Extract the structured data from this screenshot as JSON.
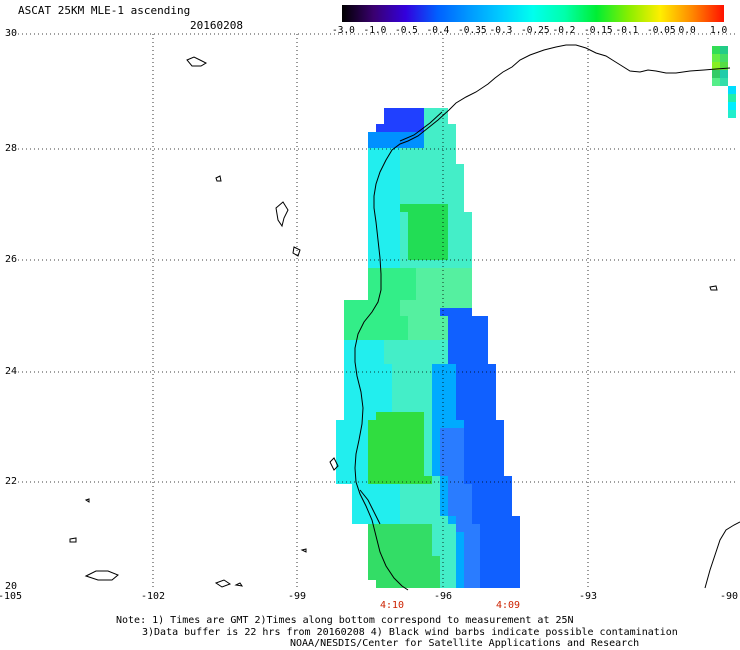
{
  "header": {
    "title": "ASCAT 25KM MLE-1 ascending",
    "date": "20160208"
  },
  "colorbar": {
    "labels": [
      "-3.0",
      "-1.0",
      "-0.5",
      "-0.4",
      "-0.35",
      "-0.3",
      "-0.25",
      "-0.2",
      "-0.15",
      "-0.1",
      "-0.05",
      "0.0",
      "1.0"
    ],
    "colors": [
      "#000000",
      "#3a0070",
      "#3300dd",
      "#0060ff",
      "#0099ff",
      "#00ccff",
      "#00ffee",
      "#00ffaa",
      "#00ee33",
      "#88ee00",
      "#ffee00",
      "#ff8800",
      "#ff1100"
    ]
  },
  "map": {
    "lat_labels": [
      "30",
      "28",
      "26",
      "24",
      "22",
      "20"
    ],
    "lon_labels": [
      "-105",
      "-102",
      "-99",
      "-96",
      "-93",
      "-90"
    ],
    "time_labels": [
      "4:10",
      "4:09"
    ]
  },
  "notes": {
    "line1": "Note: 1) Times are GMT 2)Times along bottom correspond to measurement at 25N",
    "line2": "3)Data buffer is 22 hrs from 20160208 4) Black wind barbs indicate possible contamination",
    "line3": "NOAA/NESDIS/Center for Satellite Applications and Research"
  }
}
